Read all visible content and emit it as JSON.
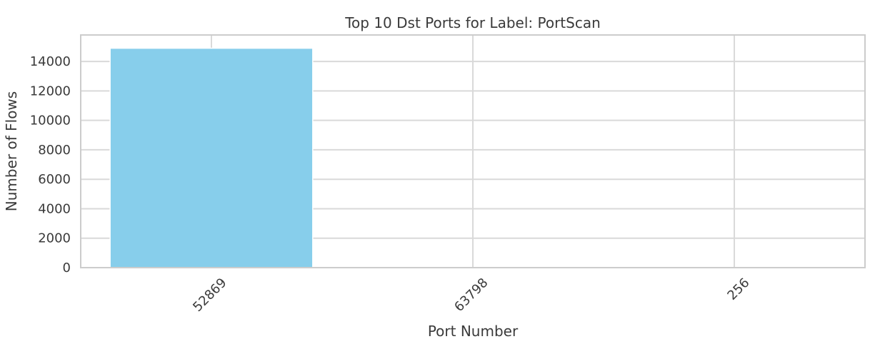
{
  "chart_data": {
    "type": "bar",
    "title": "Top 10 Dst Ports for Label: PortScan",
    "xlabel": "Port Number",
    "ylabel": "Number of Flows",
    "categories": [
      "52869",
      "63798",
      "256"
    ],
    "values": [
      14900,
      3,
      1
    ],
    "ylim": [
      0,
      15800
    ],
    "yticks": [
      0,
      2000,
      4000,
      6000,
      8000,
      10000,
      12000,
      14000
    ],
    "grid": true,
    "legend": "none",
    "colors": {
      "bar": "#87CEEB",
      "grid": "#d9d9d9",
      "axes_edge": "#cccccc",
      "text": "#3a3a3a"
    }
  }
}
